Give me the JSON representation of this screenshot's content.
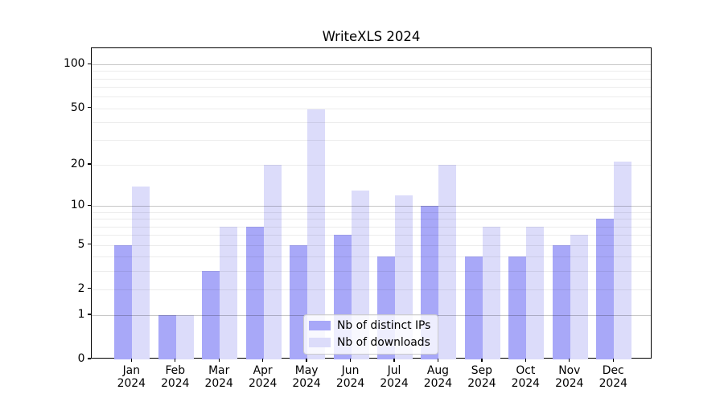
{
  "chart_data": {
    "type": "bar",
    "title": "WriteXLS 2024",
    "categories": [
      "Jan 2024",
      "Feb 2024",
      "Mar 2024",
      "Apr 2024",
      "May 2024",
      "Jun 2024",
      "Jul 2024",
      "Aug 2024",
      "Sep 2024",
      "Oct 2024",
      "Nov 2024",
      "Dec 2024"
    ],
    "month_labels": [
      "Jan",
      "Feb",
      "Mar",
      "Apr",
      "May",
      "Jun",
      "Jul",
      "Aug",
      "Sep",
      "Oct",
      "Nov",
      "Dec"
    ],
    "year_label": "2024",
    "series": [
      {
        "name": "Nb of distinct IPs",
        "color": "#a8a8f8",
        "values": [
          5,
          1,
          3,
          7,
          5,
          6,
          4,
          10,
          4,
          4,
          5,
          8
        ]
      },
      {
        "name": "Nb of downloads",
        "color": "#dcdcfa",
        "values": [
          14,
          1,
          7,
          20,
          49,
          13,
          12,
          20,
          7,
          7,
          6,
          21
        ]
      }
    ],
    "xlabel": "",
    "ylabel": "",
    "y_axis": {
      "scale": "log10(1+x)",
      "tick_values": [
        0,
        1,
        2,
        5,
        10,
        20,
        50,
        100
      ],
      "major_gridlines": [
        1,
        10,
        100
      ],
      "minor_gridlines": [
        2,
        3,
        4,
        5,
        6,
        7,
        8,
        9,
        20,
        30,
        40,
        50,
        60,
        70,
        80,
        90
      ],
      "ylim": [
        0,
        130
      ],
      "grid": true
    },
    "legend": {
      "position": "bottom-center"
    },
    "colors": {
      "background": "#ffffff",
      "axis": "#000000",
      "minor_grid": "#ececec",
      "major_grid": "#c7c7c7",
      "legend_border": "#cccccc"
    }
  }
}
